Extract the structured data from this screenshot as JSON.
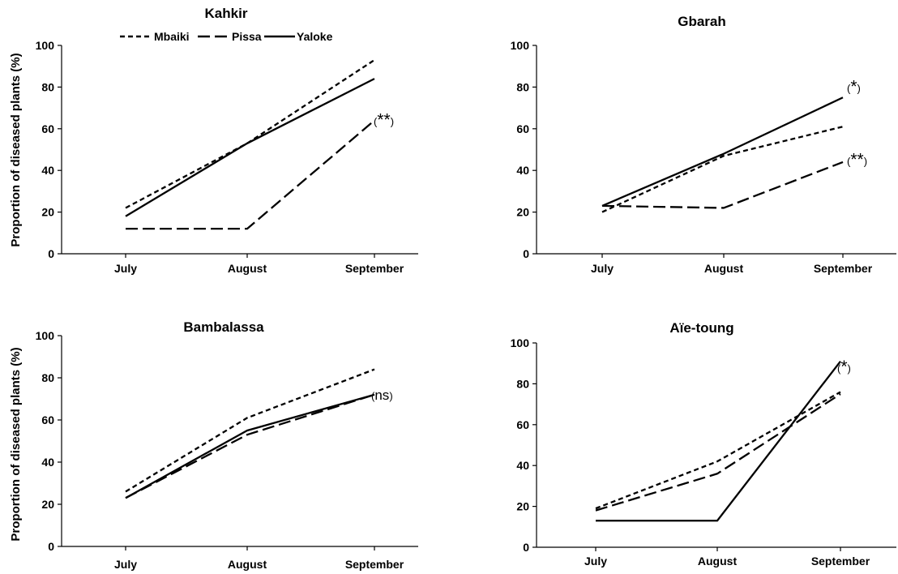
{
  "chart_data": [
    {
      "type": "line",
      "title": "Kahkir",
      "ylabel": "Proportion of diseased plants (%)",
      "categories": [
        "July",
        "August",
        "September"
      ],
      "ylim": [
        0,
        100
      ],
      "yticks": [
        "0",
        "20",
        "40",
        "60",
        "80",
        "100"
      ],
      "series": [
        {
          "name": "Mbaiki",
          "values": [
            22,
            53,
            93
          ]
        },
        {
          "name": "Pissa",
          "values": [
            12,
            12,
            64
          ]
        },
        {
          "name": "Yaloke",
          "values": [
            18,
            53,
            84
          ]
        }
      ],
      "annotation": {
        "open": "(",
        "mark": "**",
        "close": ")",
        "value": 64
      },
      "legend": {
        "placement": "top",
        "entries": [
          "Mbaiki",
          "Pissa",
          "Yaloke"
        ]
      }
    },
    {
      "type": "line",
      "title": "Gbarah",
      "ylabel": "",
      "categories": [
        "July",
        "August",
        "September"
      ],
      "ylim": [
        0,
        100
      ],
      "yticks": [
        "0",
        "20",
        "40",
        "60",
        "80",
        "100"
      ],
      "series": [
        {
          "name": "Mbaiki",
          "values": [
            20,
            47,
            61
          ]
        },
        {
          "name": "Pissa",
          "values": [
            23,
            22,
            44
          ]
        },
        {
          "name": "Yaloke",
          "values": [
            23,
            48,
            75
          ]
        }
      ],
      "annotations": [
        {
          "open": "(",
          "mark": "*",
          "close": ")",
          "value": 80
        },
        {
          "open": "(",
          "mark": "**",
          "close": ")",
          "value": 45
        }
      ]
    },
    {
      "type": "line",
      "title": "Bambalassa",
      "ylabel": "Proportion of diseased plants (%)",
      "categories": [
        "July",
        "August",
        "September"
      ],
      "ylim": [
        0,
        100
      ],
      "yticks": [
        "0",
        "20",
        "40",
        "60",
        "80",
        "100"
      ],
      "series": [
        {
          "name": "Mbaiki",
          "values": [
            26,
            61,
            84
          ]
        },
        {
          "name": "Pissa",
          "values": [
            23,
            53,
            72
          ]
        },
        {
          "name": "Yaloke",
          "values": [
            23,
            55,
            72
          ]
        }
      ],
      "annotation": {
        "open": "(",
        "mark": "ns",
        "close": ")",
        "value": 72
      }
    },
    {
      "type": "line",
      "title": "Aïe-toung",
      "ylabel": "",
      "categories": [
        "July",
        "August",
        "September"
      ],
      "ylim": [
        0,
        100
      ],
      "yticks": [
        "0",
        "20",
        "40",
        "60",
        "80",
        "100"
      ],
      "series": [
        {
          "name": "Mbaiki",
          "values": [
            19,
            42,
            76
          ]
        },
        {
          "name": "Pissa",
          "values": [
            18,
            36,
            75
          ]
        },
        {
          "name": "Yaloke",
          "values": [
            13,
            13,
            91
          ]
        }
      ],
      "annotation": {
        "open": "(",
        "mark": "*",
        "close": ")",
        "value": 88
      }
    }
  ],
  "styles": {
    "line_color": "#000000",
    "Mbaiki": "short-dash",
    "Pissa": "long-dash",
    "Yaloke": "solid"
  }
}
